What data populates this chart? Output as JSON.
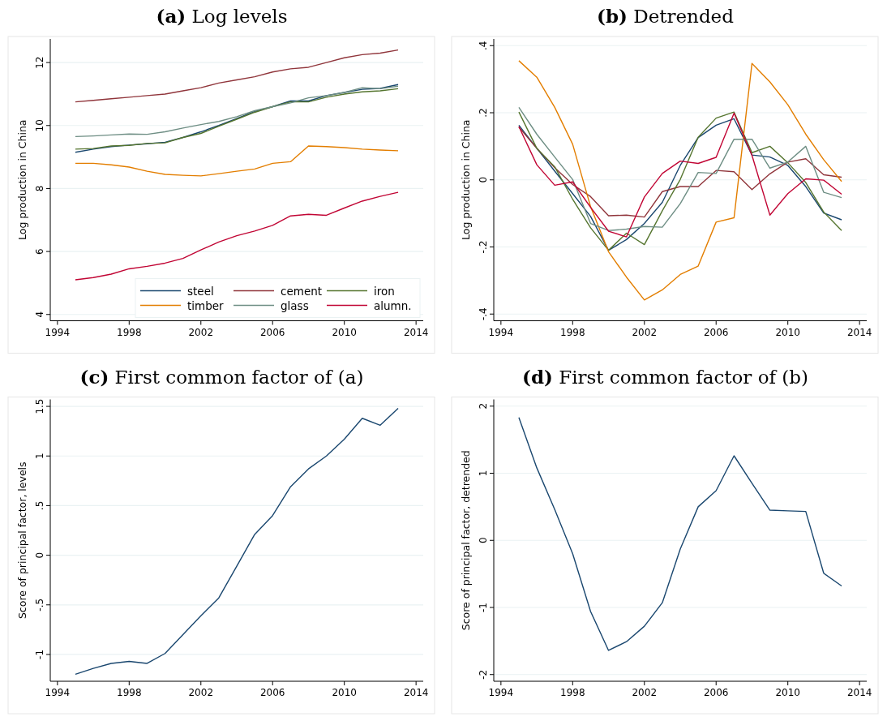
{
  "chart_data": [
    {
      "type": "line",
      "title": "(a) Log levels",
      "ylabel": "Log production in China",
      "x": [
        1995,
        1996,
        1997,
        1998,
        1999,
        2000,
        2001,
        2002,
        2003,
        2004,
        2005,
        2006,
        2007,
        2008,
        2009,
        2010,
        2011,
        2012,
        2013
      ],
      "xlim": [
        1993.6,
        2014.4
      ],
      "xticks": [
        1994,
        1998,
        2002,
        2006,
        2010,
        2014
      ],
      "ylim": [
        3.8,
        12.75
      ],
      "yticks": [
        4,
        6,
        8,
        10,
        12
      ],
      "grid": "y",
      "legend": "bottom right",
      "series": [
        {
          "name": "steel",
          "color": "#1a476f",
          "values": [
            9.15,
            9.25,
            9.33,
            9.38,
            9.42,
            9.47,
            9.62,
            9.8,
            10.0,
            10.22,
            10.45,
            10.6,
            10.78,
            10.78,
            10.95,
            11.05,
            11.15,
            11.18,
            11.3
          ]
        },
        {
          "name": "cement",
          "color": "#90353b",
          "values": [
            10.75,
            10.8,
            10.85,
            10.9,
            10.95,
            11.0,
            11.1,
            11.2,
            11.35,
            11.45,
            11.55,
            11.7,
            11.8,
            11.85,
            12.0,
            12.15,
            12.25,
            12.3,
            12.4
          ]
        },
        {
          "name": "iron",
          "color": "#55752f",
          "values": [
            9.25,
            9.27,
            9.35,
            9.37,
            9.43,
            9.45,
            9.62,
            9.75,
            9.98,
            10.2,
            10.42,
            10.6,
            10.75,
            10.75,
            10.9,
            11.0,
            11.07,
            11.1,
            11.17
          ]
        },
        {
          "name": "timber",
          "color": "#e37e00",
          "values": [
            8.8,
            8.8,
            8.75,
            8.68,
            8.55,
            8.45,
            8.42,
            8.4,
            8.47,
            8.55,
            8.62,
            8.8,
            8.85,
            9.35,
            9.33,
            9.3,
            9.25,
            9.22,
            9.2
          ]
        },
        {
          "name": "glass",
          "color": "#6e8e84",
          "values": [
            9.65,
            9.67,
            9.7,
            9.73,
            9.72,
            9.8,
            9.92,
            10.03,
            10.13,
            10.28,
            10.47,
            10.6,
            10.72,
            10.88,
            10.95,
            11.05,
            11.2,
            11.17,
            11.25
          ]
        },
        {
          "name": "alumn.",
          "color": "#c10534",
          "values": [
            5.1,
            5.17,
            5.28,
            5.45,
            5.53,
            5.63,
            5.78,
            6.05,
            6.3,
            6.5,
            6.65,
            6.83,
            7.13,
            7.18,
            7.15,
            7.38,
            7.6,
            7.75,
            7.88
          ]
        }
      ]
    },
    {
      "type": "line",
      "title": "(b) Detrended",
      "ylabel": "Log production in China",
      "x": [
        1995,
        1996,
        1997,
        1998,
        1999,
        2000,
        2001,
        2002,
        2003,
        2004,
        2005,
        2006,
        2007,
        2008,
        2009,
        2010,
        2011,
        2012,
        2013
      ],
      "xlim": [
        1993.6,
        2014.4
      ],
      "xticks": [
        1994,
        1998,
        2002,
        2006,
        2010,
        2014
      ],
      "ylim": [
        -0.42,
        0.42
      ],
      "yticks": [
        {
          "value": -0.4,
          "label": "-.4"
        },
        {
          "value": -0.2,
          "label": "-.2"
        },
        0,
        {
          "value": 0.2,
          "label": ".2"
        },
        {
          "value": 0.4,
          "label": ".4"
        }
      ],
      "grid": "y",
      "series": [
        {
          "color": "#1a476f",
          "values": [
            0.163,
            0.094,
            0.026,
            -0.041,
            -0.109,
            -0.21,
            -0.178,
            -0.13,
            -0.067,
            0.043,
            0.126,
            0.163,
            0.182,
            0.074,
            0.068,
            0.043,
            -0.02,
            -0.099,
            -0.119
          ]
        },
        {
          "color": "#90353b",
          "values": [
            0.157,
            0.094,
            0.036,
            -0.014,
            -0.05,
            -0.107,
            -0.105,
            -0.111,
            -0.035,
            -0.02,
            -0.02,
            0.028,
            0.024,
            -0.029,
            0.018,
            0.053,
            0.063,
            0.015,
            0.008
          ]
        },
        {
          "color": "#55752f",
          "values": [
            0.202,
            0.094,
            0.039,
            -0.058,
            -0.143,
            -0.21,
            -0.159,
            -0.193,
            -0.092,
            0.001,
            0.127,
            0.184,
            0.202,
            0.081,
            0.1,
            0.051,
            -0.008,
            -0.096,
            -0.151
          ]
        },
        {
          "color": "#e37e00",
          "values": [
            0.355,
            0.306,
            0.216,
            0.106,
            -0.08,
            -0.214,
            -0.29,
            -0.358,
            -0.328,
            -0.282,
            -0.257,
            -0.126,
            -0.113,
            0.347,
            0.292,
            0.224,
            0.136,
            0.06,
            -0.005
          ]
        },
        {
          "color": "#6e8e84",
          "values": [
            0.216,
            0.136,
            0.068,
            0.001,
            -0.13,
            -0.151,
            -0.147,
            -0.139,
            -0.141,
            -0.071,
            0.022,
            0.019,
            0.121,
            0.121,
            0.035,
            0.053,
            0.1,
            -0.037,
            -0.053
          ]
        },
        {
          "color": "#c10534",
          "values": [
            0.159,
            0.045,
            -0.016,
            -0.006,
            -0.082,
            -0.153,
            -0.17,
            -0.051,
            0.019,
            0.056,
            0.049,
            0.067,
            0.199,
            0.073,
            -0.105,
            -0.041,
            0.003,
            -0.001,
            -0.043
          ]
        }
      ]
    },
    {
      "type": "line",
      "title": "(c) First common factor of (a)",
      "ylabel": "Score of principal factor, levels",
      "x": [
        1995,
        1996,
        1997,
        1998,
        1999,
        2000,
        2001,
        2002,
        2003,
        2004,
        2005,
        2006,
        2007,
        2008,
        2009,
        2010,
        2011,
        2012,
        2013
      ],
      "xlim": [
        1993.6,
        2014.4
      ],
      "xticks": [
        1994,
        1998,
        2002,
        2006,
        2010,
        2014
      ],
      "ylim": [
        -1.27,
        1.57
      ],
      "yticks": [
        -1,
        {
          "value": -0.5,
          "label": "-.5"
        },
        0,
        {
          "value": 0.5,
          "label": ".5"
        },
        1,
        1.5
      ],
      "grid": "y",
      "series": [
        {
          "color": "#1a476f",
          "values": [
            -1.2,
            -1.14,
            -1.09,
            -1.07,
            -1.09,
            -0.99,
            -0.8,
            -0.61,
            -0.43,
            -0.11,
            0.21,
            0.4,
            0.69,
            0.87,
            1.0,
            1.17,
            1.38,
            1.31,
            1.48
          ]
        }
      ]
    },
    {
      "type": "line",
      "title": "(d) First common factor of (b)",
      "ylabel": "Score of principal factor, detrended",
      "x": [
        1995,
        1996,
        1997,
        1998,
        1999,
        2000,
        2001,
        2002,
        2003,
        2004,
        2005,
        2006,
        2007,
        2008,
        2009,
        2010,
        2011,
        2012,
        2013
      ],
      "xlim": [
        1993.6,
        2014.4
      ],
      "xticks": [
        1994,
        1998,
        2002,
        2006,
        2010,
        2014
      ],
      "ylim": [
        -2.1,
        2.1
      ],
      "yticks": [
        -2,
        -1,
        0,
        1,
        2
      ],
      "grid": "y",
      "series": [
        {
          "color": "#1a476f",
          "values": [
            1.83,
            1.08,
            0.46,
            -0.2,
            -1.06,
            -1.64,
            -1.51,
            -1.28,
            -0.93,
            -0.13,
            0.5,
            0.74,
            1.26,
            0.85,
            0.45,
            0.44,
            0.43,
            -0.49,
            -0.68
          ]
        }
      ]
    }
  ]
}
